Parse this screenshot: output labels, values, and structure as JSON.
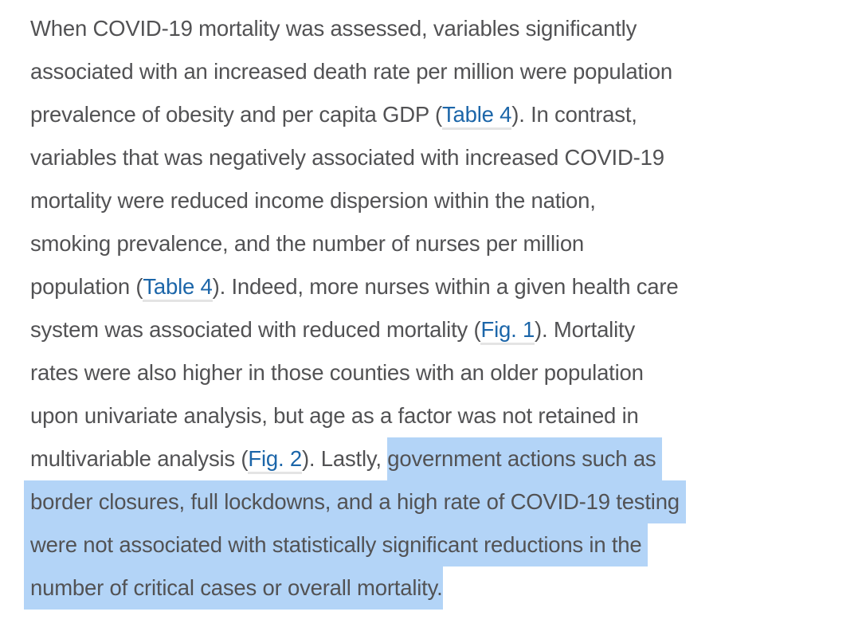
{
  "colors": {
    "background": "#ffffff",
    "text": "#525254",
    "link": "#1c66a9",
    "link_underline": "#e4e4e4",
    "selection_highlight": "#b3d4f7"
  },
  "paragraph": {
    "lines": [
      {
        "text": "When COVID-19 mortality was assessed, variables significantly"
      },
      {
        "text": "associated with an increased death rate per million were population"
      },
      {
        "pre": "prevalence of obesity and per capita GDP (",
        "link": "Table 4",
        "post": "). In contrast,"
      },
      {
        "text": "variables that was negatively associated with increased COVID-19"
      },
      {
        "text": "mortality were reduced income dispersion within the nation,"
      },
      {
        "text": "smoking prevalence, and the number of nurses per million"
      },
      {
        "pre": "population (",
        "link": "Table 4",
        "post": "). Indeed, more nurses within a given health care"
      },
      {
        "pre": "system was associated with reduced mortality (",
        "link": "Fig. 1",
        "post": "). Mortality"
      },
      {
        "text": "rates were also higher in those counties with an older population"
      },
      {
        "text": "upon univariate analysis, but age as a factor was not retained in"
      },
      {
        "pre": "multivariable analysis (",
        "link": "Fig. 2",
        "post": "). Lastly, ",
        "highlight": "government actions such as"
      },
      {
        "highlight": "border closures, full lockdowns, and a high rate of COVID-19 testing"
      },
      {
        "highlight": "were not associated with statistically significant reductions in the"
      },
      {
        "highlight": "number of critical cases or overall mortality."
      }
    ],
    "selection_text": "government actions such as border closures, full lockdowns, and a high rate of COVID-19 testing were not associated with statistically significant reductions in the number of critical cases or overall mortality."
  }
}
